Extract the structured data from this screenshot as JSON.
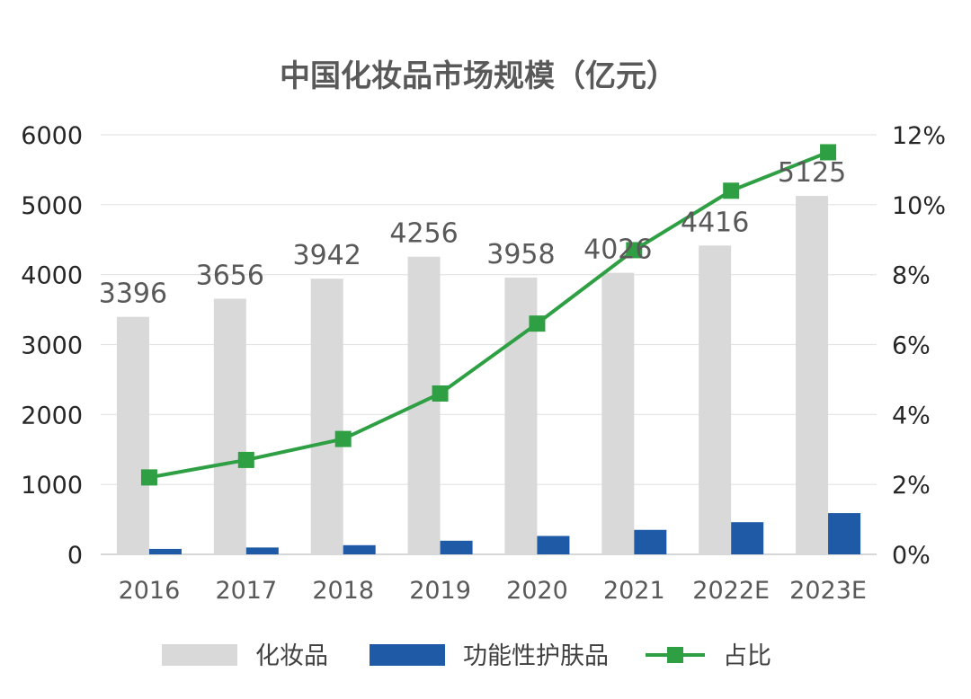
{
  "chart_data": {
    "type": "bar",
    "title": "中国化妆品市场规模（亿元）",
    "categories": [
      "2016",
      "2017",
      "2018",
      "2019",
      "2020",
      "2021",
      "2022E",
      "2023E"
    ],
    "series": [
      {
        "name": "化妆品",
        "type": "bar",
        "axis": "left",
        "color": "#d9d9d9",
        "values": [
          3396,
          3656,
          3942,
          4256,
          3958,
          4026,
          4416,
          5125
        ]
      },
      {
        "name": "功能性护肤品",
        "type": "bar",
        "axis": "left",
        "color": "#1f5aa6",
        "values": [
          78,
          98,
          131,
          195,
          263,
          350,
          460,
          590
        ]
      },
      {
        "name": "占比",
        "type": "line",
        "axis": "right",
        "color": "#2ea043",
        "values": [
          2.2,
          2.7,
          3.3,
          4.6,
          6.6,
          8.7,
          10.4,
          11.5
        ]
      }
    ],
    "data_labels": [
      "3396",
      "3656",
      "3942",
      "4256",
      "3958",
      "4026",
      "4416",
      "5125"
    ],
    "y_left": {
      "lim": [
        0,
        6000
      ],
      "ticks": [
        "0",
        "1000",
        "2000",
        "3000",
        "4000",
        "5000",
        "6000"
      ]
    },
    "y_right": {
      "lim": [
        0,
        12
      ],
      "ticks": [
        "0%",
        "2%",
        "4%",
        "6%",
        "8%",
        "10%",
        "12%"
      ]
    },
    "grid": true,
    "legend_position": "bottom"
  }
}
